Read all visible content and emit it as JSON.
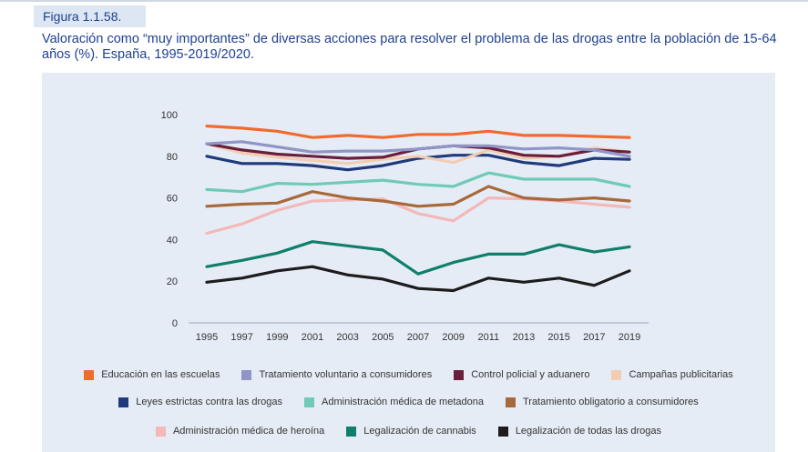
{
  "figure_label": "Figura 1.1.58.",
  "figure_title": "Valoración como “muy importantes” de diversas acciones para resolver el problema de las drogas entre la población de 15-64 años (%). España, 1995-2019/2020.",
  "chart_data": {
    "type": "line",
    "title": "",
    "xlabel": "",
    "ylabel": "",
    "ylim": [
      0,
      100
    ],
    "yticks": [
      0,
      20,
      40,
      60,
      80,
      100
    ],
    "grid": false,
    "legend_position": "bottom",
    "categories": [
      "1995",
      "1997",
      "1999",
      "2001",
      "2003",
      "2005",
      "2007",
      "2009",
      "2011",
      "2013",
      "2015",
      "2017",
      "2019"
    ],
    "series": [
      {
        "name": "Educación en las escuelas",
        "color": "#f26a2e",
        "values": [
          94.5,
          93.5,
          92,
          89,
          90,
          89,
          90.5,
          90.5,
          92,
          90,
          90,
          89.5,
          89
        ]
      },
      {
        "name": "Tratamiento voluntario a consumidores",
        "color": "#8f95c7",
        "values": [
          86,
          87,
          84.5,
          82,
          82.5,
          82.5,
          83.5,
          85,
          85,
          83.5,
          84,
          83,
          80
        ]
      },
      {
        "name": "Control policial y aduanero",
        "color": "#6b1e3c",
        "values": [
          86,
          83,
          81,
          80,
          79,
          79.5,
          83.5,
          85,
          84,
          80.5,
          80,
          83,
          82
        ]
      },
      {
        "name": "Campañas publicitarias",
        "color": "#f2cdb4",
        "values": [
          86,
          81.5,
          79.5,
          78,
          76.5,
          78.5,
          80,
          77,
          83,
          79,
          80,
          84,
          82
        ]
      },
      {
        "name": "Leyes estrictas contra las drogas",
        "color": "#1f3a7a",
        "values": [
          80,
          76.5,
          76.5,
          75.5,
          73.5,
          75.5,
          79,
          80.5,
          80.5,
          77,
          75.5,
          79,
          78.5
        ]
      },
      {
        "name": "Administración médica de metadona",
        "color": "#6fcab6",
        "values": [
          64,
          63,
          67,
          66.5,
          67.5,
          68.5,
          66.5,
          65.5,
          72,
          69,
          69,
          69,
          65.5
        ]
      },
      {
        "name": "Tratamiento obligatorio a consumidores",
        "color": "#a8693a",
        "values": [
          56,
          57,
          57.5,
          63,
          60,
          58.5,
          56,
          57,
          65.5,
          60,
          59,
          60,
          58.5
        ]
      },
      {
        "name": "Administración médica de heroína",
        "color": "#f3b8b8",
        "values": [
          43,
          47.5,
          54,
          58.5,
          59,
          59.5,
          52.5,
          49,
          60,
          59.5,
          58.5,
          57,
          55.5
        ]
      },
      {
        "name": "Legalización de cannabis",
        "color": "#0f7f6b",
        "values": [
          27,
          30,
          33.5,
          39,
          37,
          35,
          23.5,
          29,
          33,
          33,
          37.5,
          34,
          36.5
        ]
      },
      {
        "name": "Legalización de todas las drogas",
        "color": "#1c1c1c",
        "values": [
          19.5,
          21.5,
          25,
          27,
          23,
          21,
          16.5,
          15.5,
          21.5,
          19.5,
          21.5,
          18,
          25
        ]
      }
    ]
  },
  "legend_rows": [
    [
      0,
      1,
      2,
      3
    ],
    [
      4,
      5,
      6
    ],
    [
      7,
      8,
      9
    ]
  ]
}
